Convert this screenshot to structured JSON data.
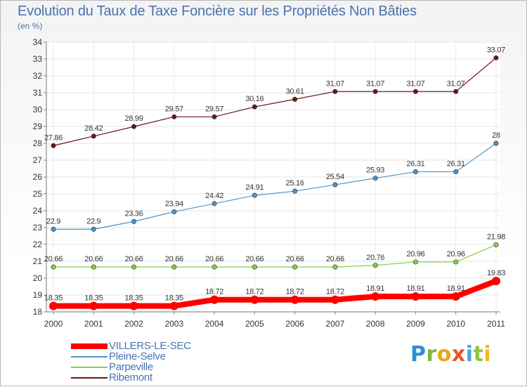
{
  "title": "Evolution du Taux de Taxe Foncière sur les Propriétés Non Bâties",
  "unit_label": "(en %)",
  "logo": {
    "letters": [
      "P",
      "r",
      "o",
      "x",
      "i",
      "t",
      "i"
    ]
  },
  "colors": {
    "VILLERS-LE-SEC": "#ff0000",
    "Pleine-Selve": "#4d93c8",
    "Parpeville": "#84cc4a",
    "Ribemont": "#6b1515"
  },
  "chart_data": {
    "type": "line",
    "title": "Evolution du Taux de Taxe Foncière sur les Propriétés Non Bâties",
    "ylabel": "(en %)",
    "xlabel": "",
    "categories": [
      "2000",
      "2001",
      "2002",
      "2003",
      "2004",
      "2005",
      "2006",
      "2007",
      "2008",
      "2009",
      "2010",
      "2011"
    ],
    "y_ticks": [
      18,
      19,
      20,
      21,
      22,
      23,
      24,
      25,
      26,
      27,
      28,
      29,
      30,
      31,
      32,
      33,
      34
    ],
    "ylim": [
      18,
      34
    ],
    "grid": true,
    "legend_position": "bottom-left",
    "series": [
      {
        "name": "VILLERS-LE-SEC",
        "values": [
          18.35,
          18.35,
          18.35,
          18.35,
          18.72,
          18.72,
          18.72,
          18.72,
          18.91,
          18.91,
          18.91,
          19.83
        ],
        "labels": [
          "18.35",
          "18.35",
          "18.35",
          "18.35",
          "18.72",
          "18.72",
          "18.72",
          "18.72",
          "18.91",
          "18.91",
          "18.91",
          "19.83"
        ]
      },
      {
        "name": "Pleine-Selve",
        "values": [
          22.9,
          22.9,
          23.36,
          23.94,
          24.42,
          24.91,
          25.16,
          25.54,
          25.93,
          26.31,
          26.31,
          28
        ],
        "labels": [
          "22.9",
          "22.9",
          "23.36",
          "23.94",
          "24.42",
          "24.91",
          "25.16",
          "25.54",
          "25.93",
          "26.31",
          "26.31",
          "28"
        ]
      },
      {
        "name": "Parpeville",
        "values": [
          20.66,
          20.66,
          20.66,
          20.66,
          20.66,
          20.66,
          20.66,
          20.66,
          20.76,
          20.96,
          20.96,
          21.98
        ],
        "labels": [
          "20.66",
          "20.66",
          "20.66",
          "20.66",
          "20.66",
          "20.66",
          "20.66",
          "20.66",
          "20.76",
          "20.96",
          "20.96",
          "21.98"
        ]
      },
      {
        "name": "Ribemont",
        "values": [
          27.86,
          28.42,
          28.99,
          29.57,
          29.57,
          30.16,
          30.61,
          31.07,
          31.07,
          31.07,
          31.07,
          33.07
        ],
        "labels": [
          "27.86",
          "28.42",
          "28.99",
          "29.57",
          "29.57",
          "30.16",
          "30.61",
          "31.07",
          "31.07",
          "31.07",
          "31.07",
          "33.07"
        ]
      }
    ]
  }
}
